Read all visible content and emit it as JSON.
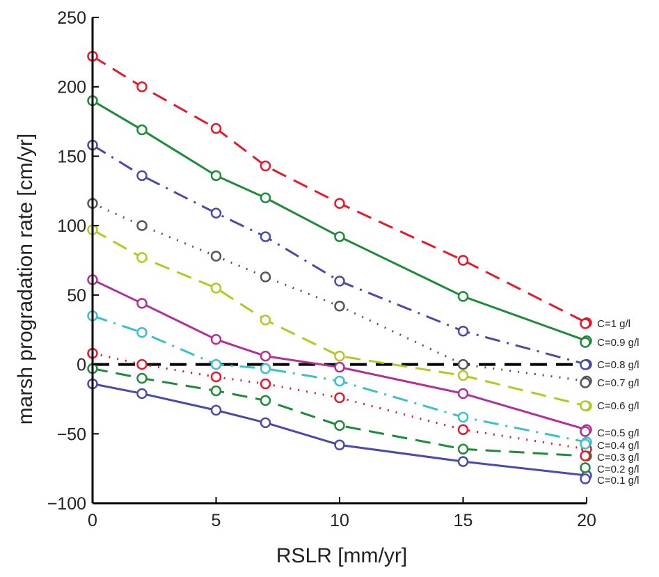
{
  "chart_data": {
    "type": "line",
    "title": "",
    "xlabel": "RSLR [mm/yr]",
    "ylabel": "marsh progradation rate [cm/yr]",
    "xlim": [
      0,
      20
    ],
    "ylim": [
      -100,
      250
    ],
    "xticks": [
      0,
      5,
      10,
      15,
      20
    ],
    "yticks": [
      -100,
      -50,
      0,
      50,
      100,
      150,
      200,
      250
    ],
    "grid": false,
    "legend": "right-end labels",
    "x": [
      0,
      2,
      5,
      7,
      10,
      15,
      20
    ],
    "zero_line": {
      "y": 0,
      "color": "#000000",
      "style": "dashed"
    },
    "series": [
      {
        "name": "C=1 g/l",
        "color": "#e31a2c",
        "style": "dashed",
        "values": [
          222,
          200,
          170,
          143,
          116,
          75,
          30
        ]
      },
      {
        "name": "C=0.9 g/l",
        "color": "#1e8a3a",
        "style": "solid",
        "values": [
          190,
          169,
          136,
          120,
          92,
          49,
          17
        ]
      },
      {
        "name": "C=0.8 g/l",
        "color": "#4a4aa8",
        "style": "dashdot",
        "values": [
          158,
          136,
          109,
          92,
          60,
          24,
          0
        ]
      },
      {
        "name": "C=0.7 g/l",
        "color": "#555555",
        "style": "dotted",
        "values": [
          116,
          100,
          78,
          63,
          42,
          0,
          -12
        ]
      },
      {
        "name": "C=0.6 g/l",
        "color": "#b5c822",
        "style": "dashed",
        "values": [
          97,
          77,
          55,
          32,
          6,
          -8,
          -30
        ]
      },
      {
        "name": "C=0.5 g/l",
        "color": "#b0309a",
        "style": "solid",
        "values": [
          61,
          44,
          18,
          6,
          -2,
          -21,
          -47
        ]
      },
      {
        "name": "C=0.4 g/l",
        "color": "#3cc0c8",
        "style": "dashdot",
        "values": [
          35,
          23,
          0,
          -3,
          -12,
          -38,
          -56
        ]
      },
      {
        "name": "C=0.3 g/l",
        "color": "#e31a2c",
        "style": "dotted",
        "values": [
          8,
          0,
          -9,
          -14,
          -24,
          -47,
          -61
        ]
      },
      {
        "name": "C=0.2 g/l",
        "color": "#1e8a3a",
        "style": "dashed",
        "values": [
          -3,
          -10,
          -19,
          -26,
          -44,
          -61,
          -66
        ]
      },
      {
        "name": "C=0.1 g/l",
        "color": "#4a4aa8",
        "style": "solid",
        "values": [
          -14,
          -21,
          -33,
          -42,
          -58,
          -70,
          -80
        ]
      }
    ]
  }
}
